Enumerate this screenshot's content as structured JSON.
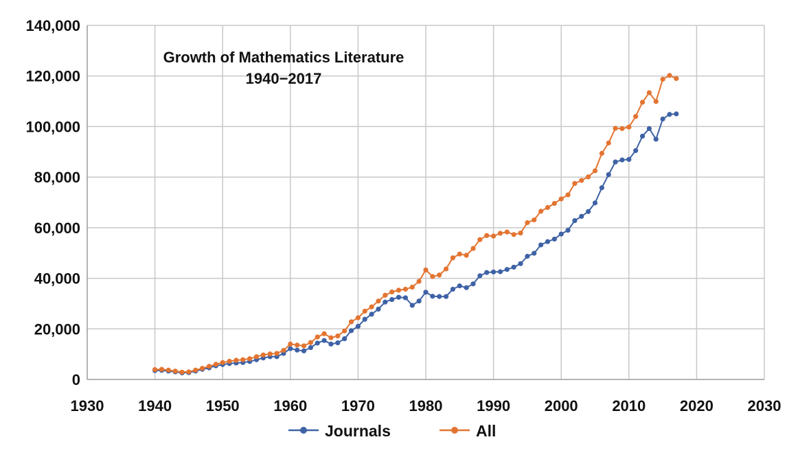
{
  "chart_data": {
    "type": "line",
    "title": "Growth of Mathematics Literature",
    "subtitle": "1940−2017",
    "xlabel": "",
    "ylabel": "",
    "xlim": [
      1930,
      2030
    ],
    "ylim": [
      0,
      140000
    ],
    "xticks": [
      1930,
      1940,
      1950,
      1960,
      1970,
      1980,
      1990,
      2000,
      2010,
      2020,
      2030
    ],
    "yticks": [
      0,
      20000,
      40000,
      60000,
      80000,
      100000,
      120000,
      140000
    ],
    "ytick_labels": [
      "0",
      "20,000",
      "40,000",
      "60,000",
      "80,000",
      "100,000",
      "120,000",
      "140,000"
    ],
    "grid": true,
    "legend_position": "bottom",
    "x": [
      1940,
      1941,
      1942,
      1943,
      1944,
      1945,
      1946,
      1947,
      1948,
      1949,
      1950,
      1951,
      1952,
      1953,
      1954,
      1955,
      1956,
      1957,
      1958,
      1959,
      1960,
      1961,
      1962,
      1963,
      1964,
      1965,
      1966,
      1967,
      1968,
      1969,
      1970,
      1971,
      1972,
      1973,
      1974,
      1975,
      1976,
      1977,
      1978,
      1979,
      1980,
      1981,
      1982,
      1983,
      1984,
      1985,
      1986,
      1987,
      1988,
      1989,
      1990,
      1991,
      1992,
      1993,
      1994,
      1995,
      1996,
      1997,
      1998,
      1999,
      2000,
      2001,
      2002,
      2003,
      2004,
      2005,
      2006,
      2007,
      2008,
      2009,
      2010,
      2011,
      2012,
      2013,
      2014,
      2015,
      2016,
      2017
    ],
    "series": [
      {
        "name": "Journals",
        "color": "#3e62a5",
        "values": [
          3500,
          3600,
          3300,
          3000,
          2600,
          2700,
          3300,
          4000,
          4600,
          5400,
          5900,
          6300,
          6500,
          6700,
          7100,
          7800,
          8500,
          9000,
          9000,
          10300,
          12200,
          11600,
          11300,
          12600,
          14400,
          15400,
          14000,
          14500,
          16100,
          19300,
          21000,
          23800,
          25800,
          27800,
          30600,
          31600,
          32500,
          32300,
          29300,
          31000,
          34500,
          32900,
          32800,
          32800,
          35700,
          37000,
          36300,
          37800,
          41000,
          42300,
          42500,
          42600,
          43500,
          44400,
          45800,
          48700,
          49900,
          53200,
          54500,
          55500,
          57500,
          59000,
          62800,
          64500,
          66400,
          69800,
          75800,
          81000,
          86000,
          86800,
          87000,
          90500,
          96200,
          99200,
          95000,
          103000,
          104800,
          105000
        ]
      },
      {
        "name": "All",
        "color": "#e37431",
        "values": [
          3900,
          4000,
          3700,
          3300,
          2900,
          3000,
          3700,
          4400,
          5200,
          6000,
          6700,
          7200,
          7600,
          7800,
          8200,
          9000,
          9700,
          10100,
          10300,
          11500,
          14000,
          13600,
          13300,
          14600,
          16800,
          18100,
          16500,
          17200,
          19200,
          22800,
          24400,
          27000,
          28700,
          31000,
          33300,
          34600,
          35300,
          35700,
          36500,
          38800,
          43300,
          40700,
          41300,
          43700,
          48100,
          49600,
          49100,
          51800,
          55300,
          56900,
          56700,
          57800,
          58300,
          57300,
          57900,
          62000,
          63100,
          66500,
          68000,
          69600,
          71400,
          73000,
          77500,
          78700,
          80100,
          82500,
          89400,
          93500,
          99300,
          99200,
          99800,
          104000,
          109600,
          113400,
          109900,
          118700,
          120200,
          119000
        ]
      }
    ]
  }
}
